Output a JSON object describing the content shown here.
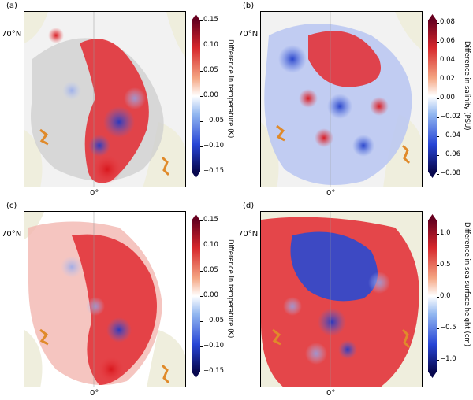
{
  "panels": [
    {
      "label": "(a)",
      "lat_label": "70°N",
      "lon_label": "0°",
      "colorbar_label": "Difference in temperature (K)",
      "ticks": [
        "0.15",
        "0.10",
        "0.05",
        "0.00",
        "−0.05",
        "−0.10",
        "−0.15"
      ]
    },
    {
      "label": "(b)",
      "lat_label": "70°N",
      "lon_label": "0°",
      "colorbar_label": "Difference in salinity (PSU)",
      "ticks": [
        "0.08",
        "0.06",
        "0.04",
        "0.02",
        "0.00",
        "−0.02",
        "−0.04",
        "−0.06",
        "−0.08"
      ]
    },
    {
      "label": "(c)",
      "lat_label": "70°N",
      "lon_label": "0°",
      "colorbar_label": "Difference in temperature (K)",
      "ticks": [
        "0.15",
        "0.10",
        "0.05",
        "0.00",
        "−0.05",
        "−0.10",
        "−0.15"
      ]
    },
    {
      "label": "(d)",
      "lat_label": "70°N",
      "lon_label": "0°",
      "colorbar_label": "Difference in sea surface height (cm)",
      "ticks": [
        "1.0",
        "0.5",
        "0.0",
        "−0.5",
        "−1.0"
      ]
    }
  ],
  "colors": {
    "land": "#efeedd",
    "ice_gray": "#c8c8c8",
    "positive": "#d7191c",
    "negative": "#1f3fbf",
    "coast_orange": "#e08a2a"
  }
}
